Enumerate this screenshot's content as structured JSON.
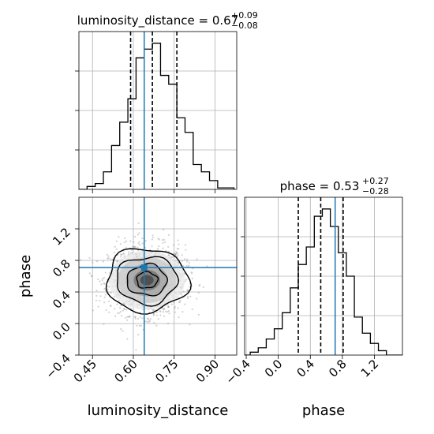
{
  "chart_data": {
    "type": "corner",
    "parameters": [
      "luminosity_distance",
      "phase"
    ],
    "truth": {
      "luminosity_distance": 0.64,
      "phase": 0.71
    },
    "colors": {
      "truth": "#1f77b4",
      "hist": "#000000",
      "points": "#808080",
      "grid": "#b0b0b0"
    },
    "grid": true,
    "panels": {
      "luminosity_distance": {
        "title": {
          "name": "luminosity_distance",
          "median": "0.67",
          "plus": "+0.09",
          "minus": "−0.08"
        },
        "xlim": [
          0.4,
          0.98
        ],
        "ylim": [
          0,
          1.0
        ],
        "quantiles": [
          0.59,
          0.67,
          0.76
        ],
        "bin_edges": [
          0.4,
          0.43,
          0.46,
          0.49,
          0.52,
          0.55,
          0.58,
          0.61,
          0.64,
          0.67,
          0.7,
          0.73,
          0.76,
          0.79,
          0.82,
          0.85,
          0.88,
          0.91,
          0.94,
          0.97
        ],
        "counts": [
          0.0,
          0.02,
          0.04,
          0.12,
          0.3,
          0.46,
          0.62,
          0.9,
          0.96,
          1.0,
          0.78,
          0.72,
          0.49,
          0.39,
          0.17,
          0.12,
          0.06,
          0.01,
          0.01
        ]
      },
      "phase": {
        "title": {
          "name": "phase",
          "median": "0.53",
          "plus": "+0.27",
          "minus": "−0.28"
        },
        "xlim": [
          -0.42,
          1.55
        ],
        "ylim": [
          0,
          1.0
        ],
        "quantiles": [
          0.25,
          0.53,
          0.81
        ],
        "bin_edges": [
          -0.45,
          -0.35,
          -0.25,
          -0.15,
          -0.05,
          0.05,
          0.15,
          0.25,
          0.35,
          0.45,
          0.55,
          0.65,
          0.75,
          0.85,
          0.95,
          1.05,
          1.15,
          1.25,
          1.35,
          1.45,
          1.55
        ],
        "counts": [
          0.0,
          0.02,
          0.05,
          0.11,
          0.18,
          0.29,
          0.46,
          0.62,
          0.74,
          0.95,
          1.0,
          0.88,
          0.7,
          0.54,
          0.26,
          0.15,
          0.08,
          0.03,
          0.0,
          0.0
        ]
      }
    },
    "joint": {
      "xlim": [
        0.4,
        0.98
      ],
      "ylim": [
        -0.4,
        1.6
      ],
      "center": [
        0.65,
        0.55
      ],
      "spread": [
        0.07,
        0.22
      ],
      "samples": 1500,
      "contour_levels": 4
    },
    "axes": {
      "joint_xticks": [
        "0.45",
        "0.60",
        "0.75",
        "0.90"
      ],
      "joint_xtick_values": [
        0.45,
        0.6,
        0.75,
        0.9
      ],
      "joint_yticks": [
        "−0.4",
        "0.0",
        "0.4",
        "0.8",
        "1.2"
      ],
      "joint_ytick_values": [
        -0.4,
        0.0,
        0.4,
        0.8,
        1.2
      ],
      "phase_xticks": [
        "−0.4",
        "0.0",
        "0.4",
        "0.8",
        "1.2"
      ],
      "phase_xtick_values": [
        -0.4,
        0.0,
        0.4,
        0.8,
        1.2
      ],
      "xlabel_left": "luminosity_distance",
      "xlabel_right": "phase",
      "ylabel": "phase"
    }
  }
}
